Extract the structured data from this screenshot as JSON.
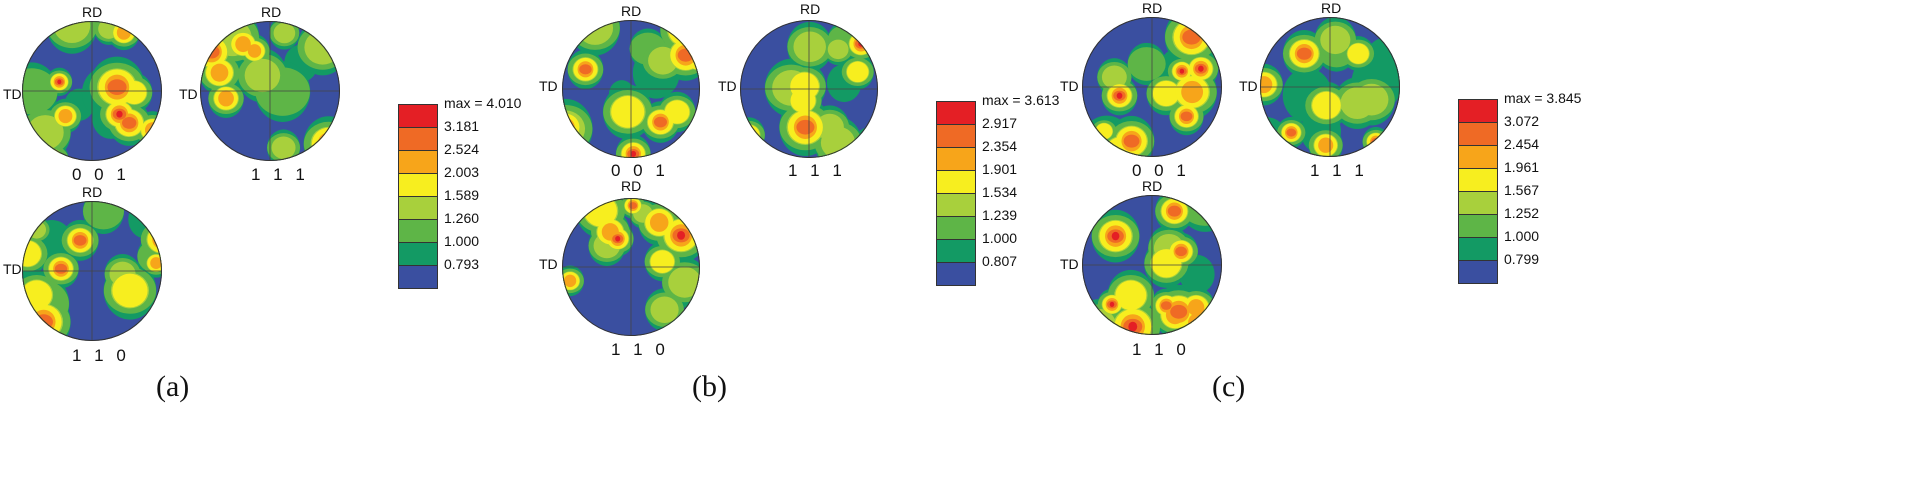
{
  "axis_labels": {
    "rd": "RD",
    "td": "TD"
  },
  "colors": {
    "blue": "#3a4fa0",
    "dark_green": "#139a64",
    "green": "#5eb547",
    "light_green": "#a8d03c",
    "yellow": "#f7ee1f",
    "orange": "#f7a51a",
    "dark_orange": "#ef6a25",
    "red": "#e41f25"
  },
  "panels": [
    {
      "caption": "(a)",
      "pole_figures": [
        {
          "plane": "0 0 1"
        },
        {
          "plane": "1 1 1"
        },
        {
          "plane": "1 1 0"
        }
      ],
      "legend": [
        "max = 4.010",
        "3.181",
        "2.524",
        "2.003",
        "1.589",
        "1.260",
        "1.000",
        "0.793"
      ]
    },
    {
      "caption": "(b)",
      "pole_figures": [
        {
          "plane": "0 0 1"
        },
        {
          "plane": "1 1 1"
        },
        {
          "plane": "1 1 0"
        }
      ],
      "legend": [
        "max = 3.613",
        "2.917",
        "2.354",
        "1.901",
        "1.534",
        "1.239",
        "1.000",
        "0.807"
      ]
    },
    {
      "caption": "(c)",
      "pole_figures": [
        {
          "plane": "0 0 1"
        },
        {
          "plane": "1 1 1"
        },
        {
          "plane": "1 1 0"
        }
      ],
      "legend": [
        "max = 3.845",
        "3.072",
        "2.454",
        "1.961",
        "1.567",
        "1.252",
        "1.000",
        "0.799"
      ]
    }
  ]
}
